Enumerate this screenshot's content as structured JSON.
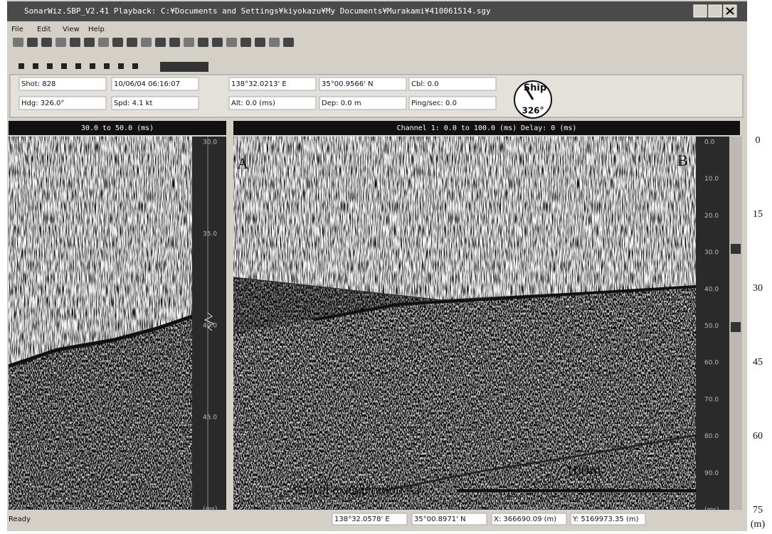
{
  "window": {
    "title": "SonarWiz.SBP_V2.41 Playback: C:¥Documents and Settings¥kiyokazu¥My Documents¥Murakami¥410061514.sgy",
    "menu": [
      "File",
      "Edit",
      "View",
      "Help"
    ]
  },
  "info": {
    "fields": [
      [
        "Shot: 828",
        "10/06/04 06:16:07",
        "138°32.0213' E",
        "35°00.9566' N",
        "Cbl: 0.0"
      ],
      [
        "Hdg: 326.0°",
        "Spd: 4.1 kt",
        "Alt: 0.0 (ms)",
        "Dep: 0.0 m",
        "Ping/sec: 0.0"
      ]
    ],
    "compass": {
      "label": "Ship",
      "heading": "326°"
    }
  },
  "left_panel": {
    "header": "30.0 to 50.0 (ms)",
    "scale": [
      "30.0",
      "35.0",
      "40.0",
      "45.0",
      "(ms)"
    ]
  },
  "right_panel": {
    "header": "Channel 1: 0.0 to 100.0 (ms) Delay: 0 (ms)",
    "scale": [
      "0.0",
      "10.0",
      "20.0",
      "30.0",
      "40.0",
      "50.0",
      "60.0",
      "70.0",
      "80.0",
      "90.0",
      "(ms)"
    ],
    "annotations": {
      "start": "A",
      "end": "B",
      "scale_bar": "100m",
      "exaggeration": "Vetical exaggeration =2"
    }
  },
  "depth_axis": {
    "labels": [
      "0",
      "15",
      "30",
      "45",
      "60",
      "75"
    ],
    "unit": "(m)"
  },
  "status_bar": [
    "Ready",
    "138°32.0578' E",
    "35°00.8971' N",
    "X: 366690.09 (m)",
    "Y: 5169973.35 (m)"
  ]
}
